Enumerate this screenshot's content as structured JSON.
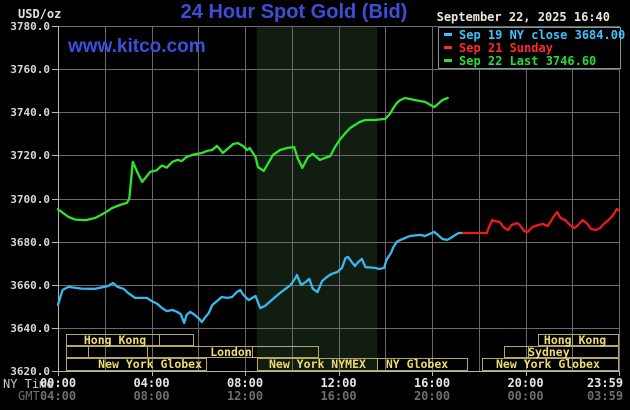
{
  "header": {
    "unit_label": "USD/oz",
    "title": "24 Hour Spot Gold (Bid)",
    "datetime": "September 22, 2025 16:40",
    "watermark": "www.kitco.com"
  },
  "legend": {
    "items": [
      {
        "text": "Sep 19 NY close 3684.00",
        "color": "#3cc3ff"
      },
      {
        "text": "Sep 21 Sunday",
        "color": "#ff2a2a"
      },
      {
        "text": "Sep 22 Last 3746.60",
        "color": "#27dd3a"
      }
    ]
  },
  "axes": {
    "ny_time_label": "NY Time",
    "gmt_label": "GMT",
    "y_ticks": [
      {
        "v": 3780,
        "label": "3780.0"
      },
      {
        "v": 3760,
        "label": "3760.0"
      },
      {
        "v": 3740,
        "label": "3740.0"
      },
      {
        "v": 3720,
        "label": "3720.0"
      },
      {
        "v": 3700,
        "label": "3700.0"
      },
      {
        "v": 3680,
        "label": "3680.0"
      },
      {
        "v": 3660,
        "label": "3660.0"
      },
      {
        "v": 3640,
        "label": "3640.0"
      },
      {
        "v": 3620,
        "label": "3620.0"
      }
    ],
    "x_ticks": [
      {
        "h": 0,
        "ny": "00:00",
        "gmt": "04:00"
      },
      {
        "h": 4,
        "ny": "04:00",
        "gmt": "08:00"
      },
      {
        "h": 8,
        "ny": "08:00",
        "gmt": "12:00"
      },
      {
        "h": 12,
        "ny": "12:00",
        "gmt": "16:00"
      },
      {
        "h": 16,
        "ny": "16:00",
        "gmt": "20:00"
      },
      {
        "h": 20,
        "ny": "20:00",
        "gmt": "00:00"
      },
      {
        "h": 23.983,
        "ny": "23:59",
        "gmt": "03:59"
      }
    ]
  },
  "sessions": [
    {
      "row": 1,
      "start": 0.34,
      "end": 4.32,
      "label": "Hong Kong",
      "label_h": 2.44
    },
    {
      "row": 1,
      "start": 4.32,
      "end": 5.78,
      "label": ""
    },
    {
      "row": 1,
      "start": 20.53,
      "end": 21.99,
      "label": ""
    },
    {
      "row": 1,
      "start": 21.99,
      "end": 23.96,
      "label": "Hong Kong",
      "label_h": 22.12
    },
    {
      "row": 2,
      "start": 0.34,
      "end": 1.28,
      "label": ""
    },
    {
      "row": 2,
      "start": 1.28,
      "end": 3.81,
      "label": ""
    },
    {
      "row": 2,
      "start": 3.81,
      "end": 8.3,
      "label": "London",
      "label_h": 7.4
    },
    {
      "row": 2,
      "start": 8.3,
      "end": 11.12,
      "label": ""
    },
    {
      "row": 2,
      "start": 19.08,
      "end": 20.11,
      "label": ""
    },
    {
      "row": 2,
      "start": 20.11,
      "end": 23.96,
      "label": "Sydney",
      "label_h": 21.0
    },
    {
      "row": 3,
      "start": 0.34,
      "end": 6.33,
      "label": "New York Globex",
      "label_h": 3.94
    },
    {
      "row": 3,
      "start": 8.51,
      "end": 13.65,
      "label": "New York NYMEX",
      "label_h": 11.1
    },
    {
      "row": 3,
      "start": 13.65,
      "end": 17.5,
      "label": "NY Globex",
      "label_h": 15.36
    },
    {
      "row": 3,
      "start": 18.14,
      "end": 23.96,
      "label": "New York Globex",
      "label_h": 20.96
    }
  ],
  "chart_data": {
    "type": "line",
    "title": "24 Hour Spot Gold (Bid)",
    "ylabel": "USD/oz",
    "ylim": [
      3620,
      3780
    ],
    "xlim_hours": [
      0,
      24
    ],
    "grid": {
      "x_step_hours": 2,
      "y_step": 20,
      "on": true
    },
    "band": {
      "start": 8.5,
      "end": 13.65,
      "color": "#121d12"
    },
    "series": [
      {
        "name": "Sep 22 (today)",
        "color": "#2de52d",
        "points": [
          [
            0,
            3695
          ],
          [
            0.2,
            3693.4
          ],
          [
            0.45,
            3691.4
          ],
          [
            0.75,
            3690.2
          ],
          [
            1.2,
            3690
          ],
          [
            1.6,
            3691
          ],
          [
            2.0,
            3693.3
          ],
          [
            2.3,
            3695.5
          ],
          [
            2.65,
            3697
          ],
          [
            2.95,
            3698
          ],
          [
            3.05,
            3700
          ],
          [
            3.2,
            3717
          ],
          [
            3.4,
            3712
          ],
          [
            3.6,
            3707.7
          ],
          [
            3.95,
            3712.4
          ],
          [
            4.2,
            3713
          ],
          [
            4.45,
            3715.3
          ],
          [
            4.65,
            3714.3
          ],
          [
            4.9,
            3717
          ],
          [
            5.1,
            3717.9
          ],
          [
            5.3,
            3717.4
          ],
          [
            5.5,
            3719.3
          ],
          [
            5.75,
            3720.2
          ],
          [
            5.95,
            3720.7
          ],
          [
            6.15,
            3721.1
          ],
          [
            6.4,
            3722.1
          ],
          [
            6.6,
            3722.5
          ],
          [
            6.8,
            3724.4
          ],
          [
            6.95,
            3722.5
          ],
          [
            7.05,
            3721.1
          ],
          [
            7.3,
            3723.4
          ],
          [
            7.5,
            3725.3
          ],
          [
            7.7,
            3725.7
          ],
          [
            7.9,
            3724.4
          ],
          [
            8.1,
            3722.5
          ],
          [
            8.2,
            3723.4
          ],
          [
            8.45,
            3719.3
          ],
          [
            8.55,
            3714.6
          ],
          [
            8.8,
            3712.8
          ],
          [
            8.95,
            3715.6
          ],
          [
            9.2,
            3720.2
          ],
          [
            9.5,
            3722.5
          ],
          [
            9.8,
            3723.4
          ],
          [
            10.1,
            3723.9
          ],
          [
            10.25,
            3718.8
          ],
          [
            10.45,
            3714.2
          ],
          [
            10.7,
            3719.3
          ],
          [
            10.9,
            3720.7
          ],
          [
            11.2,
            3717.9
          ],
          [
            11.65,
            3719.7
          ],
          [
            11.85,
            3723.9
          ],
          [
            12.05,
            3727.2
          ],
          [
            12.3,
            3730.4
          ],
          [
            12.5,
            3732.7
          ],
          [
            12.7,
            3734.1
          ],
          [
            12.9,
            3735.5
          ],
          [
            13.15,
            3736.4
          ],
          [
            13.55,
            3736.4
          ],
          [
            14.0,
            3736.9
          ],
          [
            14.2,
            3739.2
          ],
          [
            14.35,
            3742
          ],
          [
            14.5,
            3744.3
          ],
          [
            14.65,
            3745.7
          ],
          [
            14.85,
            3746.6
          ],
          [
            15.25,
            3745.7
          ],
          [
            15.7,
            3744.8
          ],
          [
            16.1,
            3742.4
          ],
          [
            16.45,
            3745.7
          ],
          [
            16.67,
            3746.6
          ]
        ]
      },
      {
        "name": "Sep 19 NY close",
        "color": "#38b8ec",
        "points": [
          [
            0,
            3650.6
          ],
          [
            0.1,
            3654.3
          ],
          [
            0.2,
            3657.6
          ],
          [
            0.45,
            3659
          ],
          [
            1.0,
            3658.2
          ],
          [
            1.6,
            3658.1
          ],
          [
            2.15,
            3659.4
          ],
          [
            2.35,
            3660.8
          ],
          [
            2.55,
            3659
          ],
          [
            2.8,
            3658.1
          ],
          [
            3.0,
            3656.2
          ],
          [
            3.3,
            3653.9
          ],
          [
            3.8,
            3653.9
          ],
          [
            4.0,
            3652.5
          ],
          [
            4.25,
            3651.1
          ],
          [
            4.45,
            3649.2
          ],
          [
            4.65,
            3647.8
          ],
          [
            4.9,
            3648.3
          ],
          [
            5.1,
            3647.4
          ],
          [
            5.25,
            3646.4
          ],
          [
            5.4,
            3642.3
          ],
          [
            5.5,
            3646
          ],
          [
            5.65,
            3647.4
          ],
          [
            5.85,
            3646
          ],
          [
            6.05,
            3644.1
          ],
          [
            6.15,
            3642.7
          ],
          [
            6.3,
            3645
          ],
          [
            6.45,
            3646.9
          ],
          [
            6.6,
            3650.6
          ],
          [
            6.85,
            3652.9
          ],
          [
            7.0,
            3654.3
          ],
          [
            7.25,
            3653.9
          ],
          [
            7.45,
            3654.3
          ],
          [
            7.65,
            3656.6
          ],
          [
            7.8,
            3657.6
          ],
          [
            7.9,
            3655.7
          ],
          [
            8.15,
            3652.9
          ],
          [
            8.45,
            3654.8
          ],
          [
            8.65,
            3649.2
          ],
          [
            8.85,
            3650.1
          ],
          [
            9.1,
            3652.5
          ],
          [
            9.5,
            3656.2
          ],
          [
            9.95,
            3659.9
          ],
          [
            10.15,
            3663.1
          ],
          [
            10.22,
            3664.5
          ],
          [
            10.4,
            3659.9
          ],
          [
            10.6,
            3661.3
          ],
          [
            10.75,
            3662.7
          ],
          [
            10.9,
            3658.1
          ],
          [
            11.1,
            3656.6
          ],
          [
            11.3,
            3661.7
          ],
          [
            11.5,
            3663.6
          ],
          [
            11.7,
            3665
          ],
          [
            11.95,
            3665.9
          ],
          [
            12.15,
            3667.8
          ],
          [
            12.3,
            3672.4
          ],
          [
            12.4,
            3672.9
          ],
          [
            12.6,
            3670.1
          ],
          [
            12.7,
            3668.7
          ],
          [
            12.85,
            3670.6
          ],
          [
            13.0,
            3672
          ],
          [
            13.15,
            3668.2
          ],
          [
            13.55,
            3667.8
          ],
          [
            13.75,
            3667.3
          ],
          [
            13.95,
            3667.8
          ],
          [
            14.05,
            3671.5
          ],
          [
            14.25,
            3674.8
          ],
          [
            14.35,
            3677.5
          ],
          [
            14.5,
            3679.9
          ],
          [
            14.65,
            3680.8
          ],
          [
            14.85,
            3681.7
          ],
          [
            15.05,
            3682.6
          ],
          [
            15.5,
            3683.1
          ],
          [
            15.7,
            3682.6
          ],
          [
            15.9,
            3683.6
          ],
          [
            16.1,
            3684.5
          ],
          [
            16.3,
            3682.6
          ],
          [
            16.45,
            3681.2
          ],
          [
            16.65,
            3680.8
          ],
          [
            16.8,
            3681.7
          ],
          [
            17.0,
            3683.1
          ],
          [
            17.15,
            3684
          ],
          [
            17.33,
            3684
          ]
        ]
      },
      {
        "name": "Sep 21 Sunday",
        "color": "#ef1a1a",
        "points": [
          [
            17.33,
            3684
          ],
          [
            18.35,
            3684
          ],
          [
            18.42,
            3686.3
          ],
          [
            18.57,
            3690
          ],
          [
            18.7,
            3689.5
          ],
          [
            18.9,
            3689.1
          ],
          [
            19.05,
            3686.8
          ],
          [
            19.25,
            3685.4
          ],
          [
            19.4,
            3687.7
          ],
          [
            19.65,
            3688.6
          ],
          [
            19.75,
            3687.7
          ],
          [
            19.95,
            3684.9
          ],
          [
            20.1,
            3684.5
          ],
          [
            20.3,
            3686.8
          ],
          [
            20.55,
            3687.7
          ],
          [
            20.75,
            3688.2
          ],
          [
            20.95,
            3687.2
          ],
          [
            21.2,
            3691.4
          ],
          [
            21.35,
            3693.7
          ],
          [
            21.5,
            3690.9
          ],
          [
            21.7,
            3690
          ],
          [
            21.9,
            3687.7
          ],
          [
            22.1,
            3686.3
          ],
          [
            22.25,
            3687.7
          ],
          [
            22.45,
            3690
          ],
          [
            22.65,
            3688.2
          ],
          [
            22.8,
            3685.9
          ],
          [
            23.0,
            3685.4
          ],
          [
            23.2,
            3686.3
          ],
          [
            23.35,
            3688.2
          ],
          [
            23.55,
            3690
          ],
          [
            23.75,
            3692.3
          ],
          [
            23.9,
            3695.1
          ],
          [
            23.97,
            3694.6
          ]
        ]
      }
    ]
  }
}
